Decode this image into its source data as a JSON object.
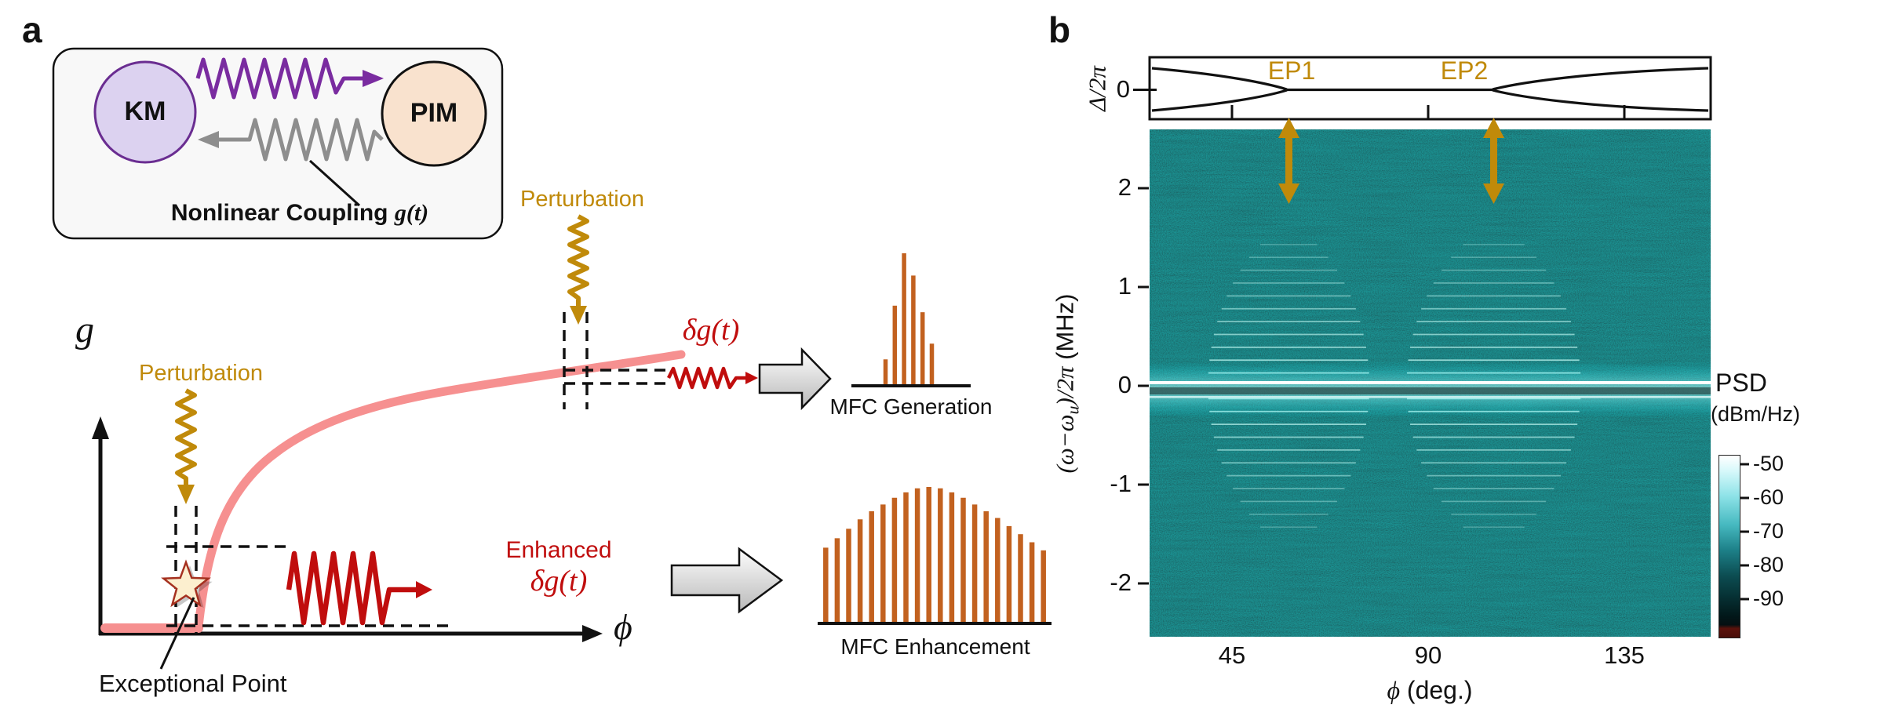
{
  "panel_a": {
    "label": "a",
    "coupling_box": {
      "km_label": "KM",
      "pim_label": "PIM",
      "caption_text": "Nonlinear Coupling ",
      "caption_math": "g(t)"
    },
    "plot": {
      "y_axis_label": "g",
      "x_axis_label": "ϕ",
      "perturbation_label": "Perturbation",
      "delta_g_label": "δg(t)",
      "enhanced_line1": "Enhanced",
      "enhanced_line2": "δg(t)",
      "exceptional_point_label": "Exceptional Point"
    },
    "outputs": {
      "mfc_generation_label": "MFC Generation",
      "mfc_enhancement_label": "MFC Enhancement"
    },
    "colors": {
      "km_fill": "#dcd2f0",
      "km_stroke": "#6a2d91",
      "pim_fill": "#f9e2ce",
      "pim_stroke": "#111111",
      "purple_spring": "#7a2ca0",
      "gray_spring": "#8e8e8e",
      "gold": "#c08a0a",
      "red": "#c00d0d",
      "curve_salmon": "#f69090",
      "comb_orange": "#c2611f",
      "star_fill": "#fcefcf",
      "star_stroke": "#a5301f"
    }
  },
  "panel_b": {
    "label": "b",
    "top_plot": {
      "y_label": "Δ/2π",
      "y_tick": "0",
      "ep1_label": "EP1",
      "ep2_label": "EP2"
    },
    "heatmap": {
      "y_label_pre": "(ω−ω",
      "y_label_sub": "u",
      "y_label_post": ")/2π",
      "y_label_unit": " (MHz)",
      "y_ticks": [
        "2",
        "1",
        "0",
        "-1",
        "-2"
      ],
      "x_ticks": [
        "45",
        "90",
        "135"
      ],
      "x_label_math": "ϕ",
      "x_label_rest": " (deg.)"
    },
    "colorbar": {
      "title_line1": "PSD",
      "title_line2": "(dBm/Hz)",
      "ticks": [
        "-50",
        "-60",
        "-70",
        "-80",
        "-90"
      ]
    }
  },
  "chart_data": [
    {
      "id": "b-top-eigenvalue",
      "type": "line",
      "ylabel": "Δ/2π",
      "y_tick_values": [
        0
      ],
      "xlabel": "ϕ (deg.)",
      "ep1_phi_deg": 58,
      "ep2_phi_deg": 105,
      "description": "Real eigenfrequency splitting: two branches coalesce at EP1 (~58 deg) and EP2 (~105 deg) with a degenerate flat segment Delta=0 between the two exceptional points; branches split again outside."
    },
    {
      "id": "b-psd-heatmap",
      "type": "heatmap",
      "xlabel": "ϕ (deg.)",
      "ylabel": "(ω−ωu)/2π (MHz)",
      "x_ticks": [
        45,
        90,
        135
      ],
      "x_range": [
        28,
        157
      ],
      "y_ticks": [
        2,
        1,
        0,
        -1,
        -2
      ],
      "y_range": [
        -2.5,
        2.5
      ],
      "colorbar": {
        "title": "PSD (dBm/Hz)",
        "ticks": [
          -50,
          -60,
          -70,
          -80,
          -90
        ]
      },
      "features": {
        "pump_line_mhz": 0,
        "comb_spacing_mhz": 0.13,
        "lines_per_side": 11,
        "fan_half_width_deg": 18.5,
        "fan_extent_mhz": 1.5,
        "line_color": "#b8f2ec",
        "fans": [
          {
            "center_phi_deg": 58,
            "width_scale": 1.0
          },
          {
            "center_phi_deg": 105,
            "width_scale": 1.08
          }
        ]
      }
    },
    {
      "id": "a-mfc-generation",
      "type": "bar",
      "label": "MFC Generation",
      "color": "#c2611f",
      "values": [
        0.19,
        0.6,
        1.0,
        0.83,
        0.55,
        0.31
      ]
    },
    {
      "id": "a-mfc-enhancement",
      "type": "bar",
      "label": "MFC Enhancement",
      "color": "#c2611f",
      "values": [
        0.55,
        0.62,
        0.69,
        0.76,
        0.82,
        0.87,
        0.92,
        0.96,
        0.99,
        1.0,
        0.99,
        0.96,
        0.92,
        0.87,
        0.82,
        0.77,
        0.71,
        0.65,
        0.59,
        0.53
      ]
    }
  ]
}
